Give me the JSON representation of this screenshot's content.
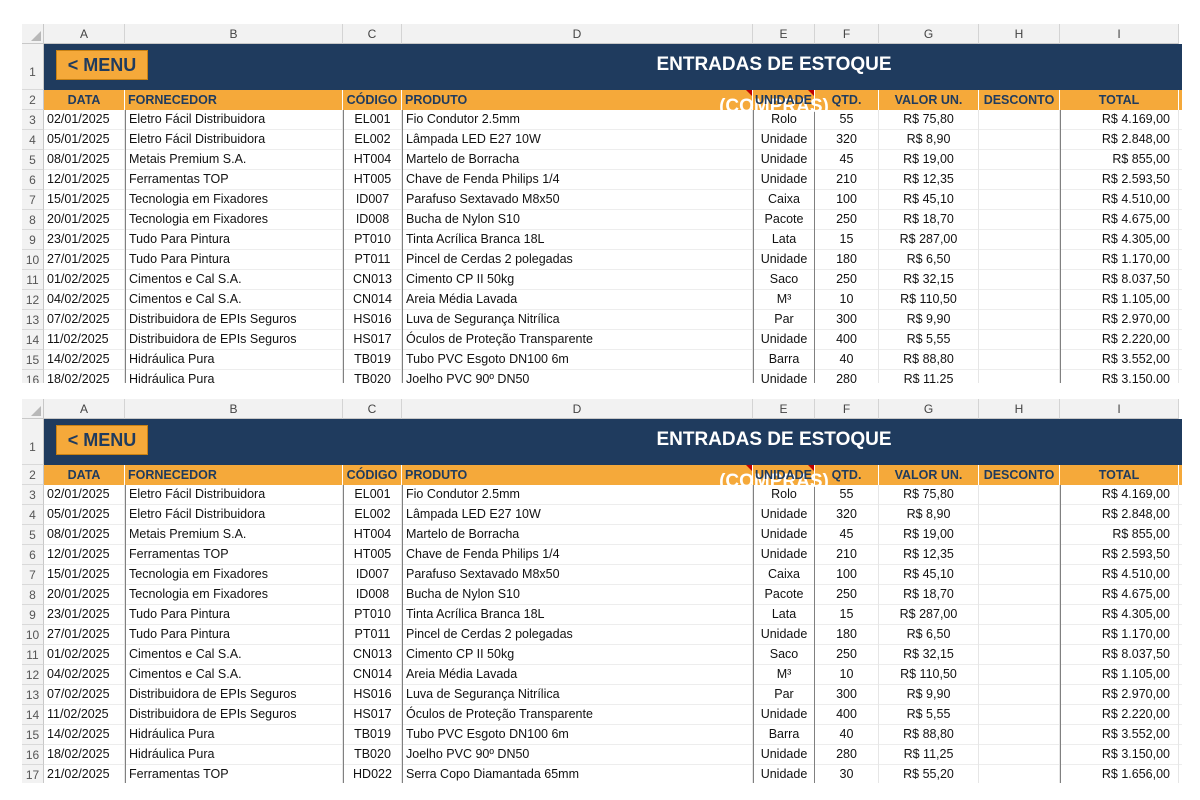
{
  "columns": [
    "A",
    "B",
    "C",
    "D",
    "E",
    "F",
    "G",
    "H",
    "I"
  ],
  "menu_label": "< MENU",
  "title": "ENTRADAS DE ESTOQUE (COMPRAS)",
  "headers": {
    "data": "DATA",
    "fornecedor": "FORNECEDOR",
    "codigo": "CÓDIGO",
    "produto": "PRODUTO",
    "unidade": "UNIDADE",
    "qtd": "QTD.",
    "valor_un": "VALOR UN.",
    "desconto": "DESCONTO",
    "total": "TOTAL"
  },
  "rows": [
    {
      "data": "02/01/2025",
      "fornecedor": "Eletro Fácil Distribuidora",
      "codigo": "EL001",
      "produto": "Fio Condutor 2.5mm",
      "unidade": "Rolo",
      "qtd": "55",
      "valor_un": "R$ 75,80",
      "desconto": "",
      "total": "R$ 4.169,00"
    },
    {
      "data": "05/01/2025",
      "fornecedor": "Eletro Fácil Distribuidora",
      "codigo": "EL002",
      "produto": "Lâmpada LED E27 10W",
      "unidade": "Unidade",
      "qtd": "320",
      "valor_un": "R$ 8,90",
      "desconto": "",
      "total": "R$ 2.848,00"
    },
    {
      "data": "08/01/2025",
      "fornecedor": "Metais Premium S.A.",
      "codigo": "HT004",
      "produto": "Martelo de Borracha",
      "unidade": "Unidade",
      "qtd": "45",
      "valor_un": "R$ 19,00",
      "desconto": "",
      "total": "R$ 855,00"
    },
    {
      "data": "12/01/2025",
      "fornecedor": "Ferramentas TOP",
      "codigo": "HT005",
      "produto": "Chave de Fenda Philips 1/4",
      "unidade": "Unidade",
      "qtd": "210",
      "valor_un": "R$ 12,35",
      "desconto": "",
      "total": "R$ 2.593,50"
    },
    {
      "data": "15/01/2025",
      "fornecedor": "Tecnologia em Fixadores",
      "codigo": "ID007",
      "produto": "Parafuso Sextavado M8x50",
      "unidade": "Caixa",
      "qtd": "100",
      "valor_un": "R$ 45,10",
      "desconto": "",
      "total": "R$ 4.510,00"
    },
    {
      "data": "20/01/2025",
      "fornecedor": "Tecnologia em Fixadores",
      "codigo": "ID008",
      "produto": "Bucha de Nylon S10",
      "unidade": "Pacote",
      "qtd": "250",
      "valor_un": "R$ 18,70",
      "desconto": "",
      "total": "R$ 4.675,00"
    },
    {
      "data": "23/01/2025",
      "fornecedor": "Tudo Para Pintura",
      "codigo": "PT010",
      "produto": "Tinta Acrílica Branca 18L",
      "unidade": "Lata",
      "qtd": "15",
      "valor_un": "R$ 287,00",
      "desconto": "",
      "total": "R$ 4.305,00"
    },
    {
      "data": "27/01/2025",
      "fornecedor": "Tudo Para Pintura",
      "codigo": "PT011",
      "produto": "Pincel de Cerdas 2 polegadas",
      "unidade": "Unidade",
      "qtd": "180",
      "valor_un": "R$ 6,50",
      "desconto": "",
      "total": "R$ 1.170,00"
    },
    {
      "data": "01/02/2025",
      "fornecedor": "Cimentos e Cal S.A.",
      "codigo": "CN013",
      "produto": "Cimento CP II 50kg",
      "unidade": "Saco",
      "qtd": "250",
      "valor_un": "R$ 32,15",
      "desconto": "",
      "total": "R$ 8.037,50"
    },
    {
      "data": "04/02/2025",
      "fornecedor": "Cimentos e Cal S.A.",
      "codigo": "CN014",
      "produto": "Areia Média Lavada",
      "unidade": "M³",
      "qtd": "10",
      "valor_un": "R$ 110,50",
      "desconto": "",
      "total": "R$ 1.105,00"
    },
    {
      "data": "07/02/2025",
      "fornecedor": "Distribuidora de EPIs Seguros",
      "codigo": "HS016",
      "produto": "Luva de Segurança Nitrílica",
      "unidade": "Par",
      "qtd": "300",
      "valor_un": "R$ 9,90",
      "desconto": "",
      "total": "R$ 2.970,00"
    },
    {
      "data": "11/02/2025",
      "fornecedor": "Distribuidora de EPIs Seguros",
      "codigo": "HS017",
      "produto": "Óculos de Proteção Transparente",
      "unidade": "Unidade",
      "qtd": "400",
      "valor_un": "R$ 5,55",
      "desconto": "",
      "total": "R$ 2.220,00"
    },
    {
      "data": "14/02/2025",
      "fornecedor": "Hidráulica Pura",
      "codigo": "TB019",
      "produto": "Tubo PVC Esgoto DN100 6m",
      "unidade": "Barra",
      "qtd": "40",
      "valor_un": "R$ 88,80",
      "desconto": "",
      "total": "R$ 3.552,00"
    },
    {
      "data": "18/02/2025",
      "fornecedor": "Hidráulica Pura",
      "codigo": "TB020",
      "produto": "Joelho PVC 90º DN50",
      "unidade": "Unidade",
      "qtd": "280",
      "valor_un": "R$ 11,25",
      "desconto": "",
      "total": "R$ 3.150,00"
    },
    {
      "data": "21/02/2025",
      "fornecedor": "Ferramentas TOP",
      "codigo": "HD022",
      "produto": "Serra Copo Diamantada 65mm",
      "unidade": "Unidade",
      "qtd": "30",
      "valor_un": "R$ 55,20",
      "desconto": "",
      "total": "R$ 1.656,00"
    }
  ],
  "colors": {
    "navy": "#1f3b5e",
    "orange": "#f5a93a",
    "note": "#c00000"
  }
}
